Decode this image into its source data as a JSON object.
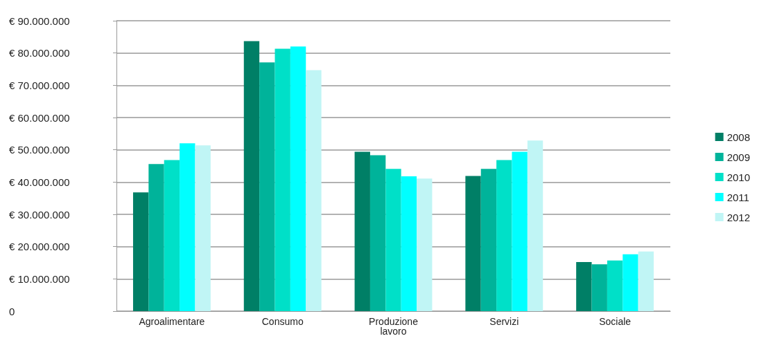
{
  "chart_data": {
    "type": "bar",
    "categories": [
      "Agroalimentare",
      "Consumo",
      "Produzione\nlavoro",
      "Servizi",
      "Sociale"
    ],
    "series": [
      {
        "name": "2008",
        "color": "#007f66",
        "values": [
          36800000,
          83700000,
          49400000,
          41900000,
          15200000
        ]
      },
      {
        "name": "2009",
        "color": "#00b39a",
        "values": [
          45600000,
          77100000,
          48300000,
          44100000,
          14500000
        ]
      },
      {
        "name": "2010",
        "color": "#00e0c8",
        "values": [
          46800000,
          81300000,
          44100000,
          46800000,
          15700000
        ]
      },
      {
        "name": "2011",
        "color": "#00ffff",
        "values": [
          52000000,
          82000000,
          41800000,
          49400000,
          17600000
        ]
      },
      {
        "name": "2012",
        "color": "#c0f5f5",
        "values": [
          51400000,
          74700000,
          41100000,
          52900000,
          18500000
        ]
      }
    ],
    "ylim": [
      0,
      90000000
    ],
    "yticks": [
      {
        "value": 0,
        "label": "0"
      },
      {
        "value": 10000000,
        "label": "€ 10.000.000"
      },
      {
        "value": 20000000,
        "label": "€ 20.000.000"
      },
      {
        "value": 30000000,
        "label": "€ 30.000.000"
      },
      {
        "value": 40000000,
        "label": "€ 40.000.000"
      },
      {
        "value": 50000000,
        "label": "€ 50.000.000"
      },
      {
        "value": 60000000,
        "label": "€ 60.000.000"
      },
      {
        "value": 70000000,
        "label": "€ 70.000.000"
      },
      {
        "value": 80000000,
        "label": "€ 80.000.000"
      },
      {
        "value": 90000000,
        "label": "€ 90.000.000"
      }
    ],
    "grid": "y",
    "legend": "right"
  }
}
